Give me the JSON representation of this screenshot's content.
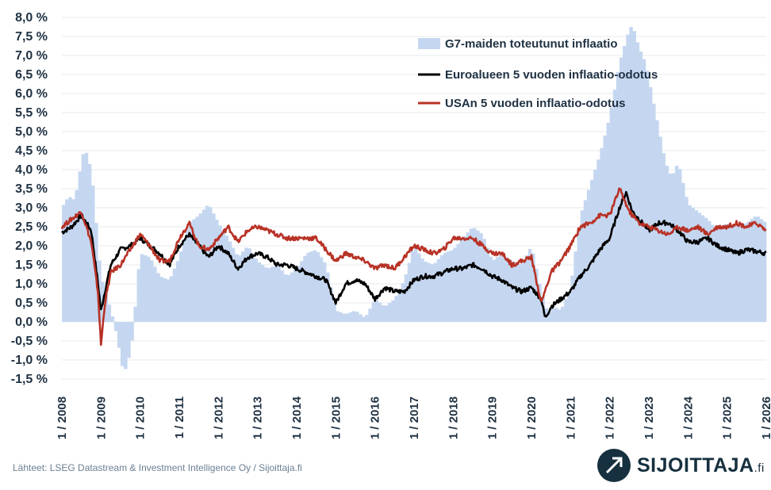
{
  "chart_data": {
    "type": "bar+line",
    "ylim": [
      -1.5,
      8.0
    ],
    "y_ticks": [
      "8,0 %",
      "7,5 %",
      "7,0 %",
      "6,5 %",
      "6,0 %",
      "5,5 %",
      "5,0 %",
      "4,5 %",
      "4,0 %",
      "3,5 %",
      "3,0 %",
      "2,5 %",
      "2,0 %",
      "1,5 %",
      "1,0 %",
      "0,5 %",
      "0,0 %",
      "-0,5 %",
      "-1,0 %",
      "-1,5 %"
    ],
    "x_ticks": [
      "1 / 2008",
      "1 / 2009",
      "1 / 2010",
      "1 / 2011",
      "1 / 2012",
      "1 / 2013",
      "1 / 2014",
      "1 / 2015",
      "1 / 2016",
      "1 / 2017",
      "1 / 2018",
      "1 / 2019",
      "1 / 2020",
      "1 / 2021",
      "1 / 2022",
      "1 / 2023",
      "1 / 2024",
      "1 / 2025",
      "1 / 2026"
    ],
    "grid": true,
    "legend_position": "top-right",
    "series": [
      {
        "name": "G7-maiden toteutunut inflaatio",
        "kind": "bar",
        "color": "#c5d7f0",
        "points": [
          [
            2008.0,
            3.0
          ],
          [
            2008.17,
            3.3
          ],
          [
            2008.33,
            3.2
          ],
          [
            2008.5,
            4.2
          ],
          [
            2008.58,
            4.6
          ],
          [
            2008.75,
            4.0
          ],
          [
            2008.83,
            3.2
          ],
          [
            2008.92,
            2.0
          ],
          [
            2009.0,
            1.2
          ],
          [
            2009.17,
            0.6
          ],
          [
            2009.33,
            0.0
          ],
          [
            2009.5,
            -0.9
          ],
          [
            2009.58,
            -1.4
          ],
          [
            2009.75,
            -0.8
          ],
          [
            2009.83,
            -0.2
          ],
          [
            2009.92,
            1.0
          ],
          [
            2010.0,
            1.8
          ],
          [
            2010.25,
            1.7
          ],
          [
            2010.5,
            1.2
          ],
          [
            2010.75,
            1.1
          ],
          [
            2011.0,
            1.7
          ],
          [
            2011.25,
            2.6
          ],
          [
            2011.5,
            2.8
          ],
          [
            2011.75,
            3.1
          ],
          [
            2012.0,
            2.6
          ],
          [
            2012.25,
            2.2
          ],
          [
            2012.5,
            1.7
          ],
          [
            2012.75,
            2.0
          ],
          [
            2013.0,
            1.6
          ],
          [
            2013.25,
            1.4
          ],
          [
            2013.5,
            1.5
          ],
          [
            2013.75,
            1.2
          ],
          [
            2014.0,
            1.4
          ],
          [
            2014.25,
            1.8
          ],
          [
            2014.5,
            1.9
          ],
          [
            2014.75,
            1.5
          ],
          [
            2015.0,
            0.3
          ],
          [
            2015.25,
            0.2
          ],
          [
            2015.5,
            0.3
          ],
          [
            2015.75,
            0.1
          ],
          [
            2016.0,
            0.6
          ],
          [
            2016.25,
            0.4
          ],
          [
            2016.5,
            0.6
          ],
          [
            2016.75,
            1.1
          ],
          [
            2017.0,
            2.0
          ],
          [
            2017.25,
            1.6
          ],
          [
            2017.5,
            1.5
          ],
          [
            2017.75,
            1.8
          ],
          [
            2018.0,
            1.9
          ],
          [
            2018.25,
            2.2
          ],
          [
            2018.5,
            2.5
          ],
          [
            2018.75,
            2.3
          ],
          [
            2019.0,
            1.6
          ],
          [
            2019.25,
            1.8
          ],
          [
            2019.5,
            1.6
          ],
          [
            2019.75,
            1.5
          ],
          [
            2020.0,
            2.0
          ],
          [
            2020.25,
            0.8
          ],
          [
            2020.42,
            0.2
          ],
          [
            2020.58,
            0.4
          ],
          [
            2020.75,
            0.3
          ],
          [
            2021.0,
            0.9
          ],
          [
            2021.25,
            2.8
          ],
          [
            2021.5,
            3.6
          ],
          [
            2021.75,
            4.4
          ],
          [
            2022.0,
            5.4
          ],
          [
            2022.25,
            6.8
          ],
          [
            2022.5,
            7.7
          ],
          [
            2022.58,
            7.8
          ],
          [
            2022.75,
            7.2
          ],
          [
            2022.92,
            6.8
          ],
          [
            2023.17,
            5.5
          ],
          [
            2023.42,
            4.2
          ],
          [
            2023.58,
            3.8
          ],
          [
            2023.75,
            4.2
          ],
          [
            2024.0,
            3.1
          ],
          [
            2024.25,
            2.9
          ],
          [
            2024.5,
            2.7
          ],
          [
            2024.75,
            2.4
          ],
          [
            2025.0,
            2.6
          ],
          [
            2025.25,
            2.5
          ],
          [
            2025.5,
            2.6
          ],
          [
            2025.75,
            2.8
          ],
          [
            2026.0,
            2.6
          ]
        ]
      },
      {
        "name": "Euroalueen 5 vuoden inflaatio-odotus",
        "kind": "line",
        "color": "#000000",
        "points": [
          [
            2008.0,
            2.35
          ],
          [
            2008.25,
            2.5
          ],
          [
            2008.5,
            2.8
          ],
          [
            2008.75,
            2.4
          ],
          [
            2008.9,
            1.2
          ],
          [
            2009.0,
            0.3
          ],
          [
            2009.1,
            0.8
          ],
          [
            2009.25,
            1.5
          ],
          [
            2009.5,
            1.9
          ],
          [
            2009.75,
            2.0
          ],
          [
            2010.0,
            2.2
          ],
          [
            2010.25,
            2.0
          ],
          [
            2010.5,
            1.8
          ],
          [
            2010.75,
            1.5
          ],
          [
            2011.0,
            2.0
          ],
          [
            2011.25,
            2.3
          ],
          [
            2011.5,
            2.0
          ],
          [
            2011.75,
            1.7
          ],
          [
            2012.0,
            2.0
          ],
          [
            2012.25,
            1.8
          ],
          [
            2012.5,
            1.4
          ],
          [
            2012.75,
            1.7
          ],
          [
            2013.0,
            1.8
          ],
          [
            2013.25,
            1.7
          ],
          [
            2013.5,
            1.5
          ],
          [
            2013.75,
            1.5
          ],
          [
            2014.0,
            1.4
          ],
          [
            2014.25,
            1.3
          ],
          [
            2014.5,
            1.2
          ],
          [
            2014.75,
            1.1
          ],
          [
            2015.0,
            0.5
          ],
          [
            2015.25,
            1.0
          ],
          [
            2015.5,
            1.1
          ],
          [
            2015.75,
            1.0
          ],
          [
            2016.0,
            0.6
          ],
          [
            2016.25,
            0.9
          ],
          [
            2016.5,
            0.8
          ],
          [
            2016.75,
            0.8
          ],
          [
            2017.0,
            1.1
          ],
          [
            2017.25,
            1.2
          ],
          [
            2017.5,
            1.2
          ],
          [
            2017.75,
            1.3
          ],
          [
            2018.0,
            1.4
          ],
          [
            2018.25,
            1.4
          ],
          [
            2018.5,
            1.5
          ],
          [
            2018.75,
            1.4
          ],
          [
            2019.0,
            1.2
          ],
          [
            2019.25,
            1.1
          ],
          [
            2019.5,
            0.9
          ],
          [
            2019.75,
            0.8
          ],
          [
            2020.0,
            0.9
          ],
          [
            2020.25,
            0.6
          ],
          [
            2020.35,
            0.1
          ],
          [
            2020.5,
            0.4
          ],
          [
            2020.75,
            0.6
          ],
          [
            2021.0,
            0.8
          ],
          [
            2021.25,
            1.2
          ],
          [
            2021.5,
            1.5
          ],
          [
            2021.75,
            1.9
          ],
          [
            2022.0,
            2.2
          ],
          [
            2022.25,
            3.0
          ],
          [
            2022.42,
            3.4
          ],
          [
            2022.58,
            2.9
          ],
          [
            2022.75,
            2.7
          ],
          [
            2023.0,
            2.4
          ],
          [
            2023.25,
            2.6
          ],
          [
            2023.5,
            2.6
          ],
          [
            2023.75,
            2.4
          ],
          [
            2024.0,
            2.1
          ],
          [
            2024.25,
            2.1
          ],
          [
            2024.5,
            2.2
          ],
          [
            2024.75,
            2.0
          ],
          [
            2025.0,
            1.9
          ],
          [
            2025.25,
            1.8
          ],
          [
            2025.5,
            1.9
          ],
          [
            2025.75,
            1.85
          ],
          [
            2026.0,
            1.8
          ]
        ]
      },
      {
        "name": "USAn 5 vuoden inflaatio-odotus",
        "kind": "line",
        "color": "#b83226",
        "points": [
          [
            2008.0,
            2.5
          ],
          [
            2008.25,
            2.7
          ],
          [
            2008.5,
            2.9
          ],
          [
            2008.75,
            2.1
          ],
          [
            2008.92,
            0.8
          ],
          [
            2009.0,
            -0.6
          ],
          [
            2009.1,
            0.5
          ],
          [
            2009.25,
            1.3
          ],
          [
            2009.5,
            1.5
          ],
          [
            2009.75,
            1.9
          ],
          [
            2010.0,
            2.3
          ],
          [
            2010.25,
            2.0
          ],
          [
            2010.5,
            1.6
          ],
          [
            2010.75,
            1.6
          ],
          [
            2011.0,
            2.2
          ],
          [
            2011.25,
            2.6
          ],
          [
            2011.5,
            2.0
          ],
          [
            2011.75,
            1.9
          ],
          [
            2012.0,
            2.2
          ],
          [
            2012.25,
            2.5
          ],
          [
            2012.5,
            2.1
          ],
          [
            2012.75,
            2.4
          ],
          [
            2013.0,
            2.5
          ],
          [
            2013.25,
            2.4
          ],
          [
            2013.5,
            2.3
          ],
          [
            2013.75,
            2.2
          ],
          [
            2014.0,
            2.2
          ],
          [
            2014.25,
            2.2
          ],
          [
            2014.5,
            2.2
          ],
          [
            2014.75,
            1.9
          ],
          [
            2015.0,
            1.6
          ],
          [
            2015.25,
            1.8
          ],
          [
            2015.5,
            1.7
          ],
          [
            2015.75,
            1.6
          ],
          [
            2016.0,
            1.4
          ],
          [
            2016.25,
            1.5
          ],
          [
            2016.5,
            1.4
          ],
          [
            2016.75,
            1.7
          ],
          [
            2017.0,
            2.0
          ],
          [
            2017.25,
            1.9
          ],
          [
            2017.5,
            1.8
          ],
          [
            2017.75,
            1.9
          ],
          [
            2018.0,
            2.2
          ],
          [
            2018.25,
            2.2
          ],
          [
            2018.5,
            2.2
          ],
          [
            2018.75,
            2.0
          ],
          [
            2019.0,
            1.8
          ],
          [
            2019.25,
            1.8
          ],
          [
            2019.5,
            1.5
          ],
          [
            2019.75,
            1.6
          ],
          [
            2020.0,
            1.7
          ],
          [
            2020.25,
            0.5
          ],
          [
            2020.5,
            1.3
          ],
          [
            2020.75,
            1.6
          ],
          [
            2021.0,
            2.0
          ],
          [
            2021.25,
            2.5
          ],
          [
            2021.5,
            2.6
          ],
          [
            2021.75,
            2.8
          ],
          [
            2022.0,
            2.8
          ],
          [
            2022.25,
            3.5
          ],
          [
            2022.5,
            2.9
          ],
          [
            2022.75,
            2.6
          ],
          [
            2023.0,
            2.5
          ],
          [
            2023.25,
            2.4
          ],
          [
            2023.5,
            2.3
          ],
          [
            2023.75,
            2.5
          ],
          [
            2024.0,
            2.4
          ],
          [
            2024.25,
            2.5
          ],
          [
            2024.5,
            2.3
          ],
          [
            2024.75,
            2.5
          ],
          [
            2025.0,
            2.5
          ],
          [
            2025.25,
            2.6
          ],
          [
            2025.5,
            2.5
          ],
          [
            2025.75,
            2.6
          ],
          [
            2026.0,
            2.4
          ]
        ]
      }
    ]
  },
  "source": "Lähteet: LSEG Datastream & Investment Intelligence Oy  / Sijoittaja.fi",
  "brand": {
    "name": "SIJOITTAJA",
    "tld": ".fi"
  }
}
